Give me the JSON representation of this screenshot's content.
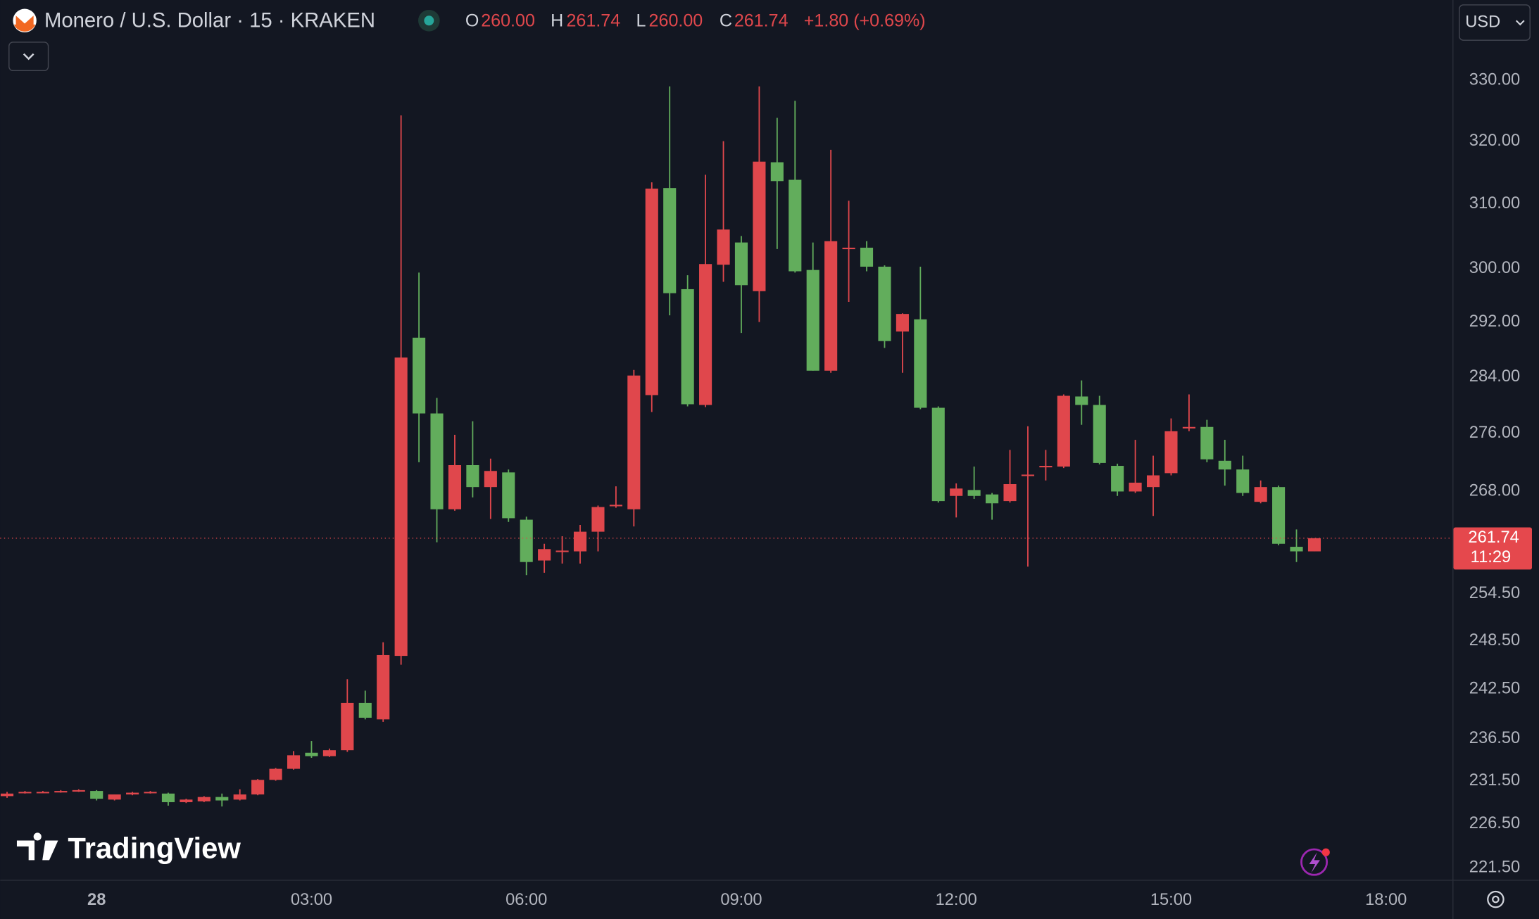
{
  "header": {
    "symbol": "Monero / U.S. Dollar · 15 · KRAKEN",
    "open_label": "O",
    "open": "260.00",
    "high_label": "H",
    "high": "261.74",
    "low_label": "L",
    "low": "260.00",
    "close_label": "C",
    "close": "261.74",
    "change": "+1.80 (+0.69%)",
    "currency": "USD"
  },
  "logo": "TradingView",
  "chart_data": {
    "type": "candlestick",
    "log_scale": true,
    "up_color": "#e0474c",
    "down_color": "#62ad5c",
    "ylim": [
      220.18,
      343.7
    ],
    "yticks": [
      {
        "value": 330,
        "label": "330.00"
      },
      {
        "value": 320,
        "label": "320.00"
      },
      {
        "value": 310,
        "label": "310.00"
      },
      {
        "value": 300,
        "label": "300.00"
      },
      {
        "value": 292,
        "label": "292.00"
      },
      {
        "value": 284,
        "label": "284.00"
      },
      {
        "value": 276,
        "label": "276.00"
      },
      {
        "value": 268,
        "label": "268.00"
      },
      {
        "value": 254.5,
        "label": "254.50"
      },
      {
        "value": 248.5,
        "label": "248.50"
      },
      {
        "value": 242.5,
        "label": "242.50"
      },
      {
        "value": 236.5,
        "label": "236.50"
      },
      {
        "value": 231.5,
        "label": "231.50"
      },
      {
        "value": 226.5,
        "label": "226.50"
      },
      {
        "value": 221.5,
        "label": "221.50"
      }
    ],
    "xlim": [
      -0.384,
      80.71
    ],
    "xticks": [
      {
        "value": 5,
        "label": "28"
      },
      {
        "value": 17,
        "label": "03:00"
      },
      {
        "value": 29,
        "label": "06:00"
      },
      {
        "value": 41,
        "label": "09:00"
      },
      {
        "value": 53,
        "label": "12:00"
      },
      {
        "value": 65,
        "label": "15:00"
      },
      {
        "value": 77,
        "label": "18:00"
      }
    ],
    "price_label": {
      "value": 261.74,
      "label": "261.74",
      "countdown": "11:29"
    },
    "open": [
      229.7,
      230.1,
      230.2,
      230.2,
      230.3,
      230.3,
      229.3,
      229.9,
      230.1,
      230.0,
      229.0,
      229.1,
      229.6,
      229.3,
      229.9,
      231.6,
      232.9,
      234.8,
      234.4,
      235.1,
      240.8,
      238.8,
      246.6,
      289.7,
      278.8,
      265.6,
      271.6,
      268.6,
      270.6,
      264.2,
      258.8,
      260.0,
      260.0,
      262.6,
      266.0,
      265.6,
      281.4,
      312.5,
      296.9,
      280.0,
      300.6,
      304.0,
      296.6,
      316.6,
      313.8,
      299.8,
      284.9,
      303.0,
      303.2,
      300.3,
      290.6,
      292.4,
      279.6,
      267.4,
      268.2,
      267.6,
      266.7,
      270.2,
      271.3,
      271.4,
      281.2,
      280.0,
      271.5,
      268.0,
      268.6,
      270.5,
      276.7,
      276.9,
      272.2,
      271.0,
      266.6,
      268.6,
      260.6,
      260.0
    ],
    "high": [
      230.2,
      230.3,
      230.3,
      230.4,
      230.5,
      230.4,
      229.9,
      230.2,
      230.3,
      230.1,
      229.4,
      229.7,
      230.0,
      230.5,
      231.7,
      233.0,
      235.0,
      236.2,
      235.3,
      243.7,
      242.3,
      248.3,
      324.2,
      299.4,
      281.0,
      275.8,
      277.7,
      272.5,
      271.0,
      264.6,
      261.0,
      262.0,
      263.5,
      266.1,
      268.7,
      285.0,
      313.4,
      329.0,
      299.0,
      314.6,
      320.0,
      305.0,
      329.0,
      323.8,
      326.6,
      304.0,
      318.6,
      310.5,
      304.2,
      300.5,
      293.3,
      300.3,
      279.8,
      269.1,
      271.4,
      267.8,
      273.7,
      277.0,
      273.7,
      281.5,
      283.5,
      281.3,
      271.8,
      275.1,
      272.9,
      278.1,
      281.5,
      277.9,
      275.1,
      272.9,
      269.5,
      268.8,
      262.9,
      261.74
    ],
    "low": [
      229.5,
      230.0,
      230.1,
      230.1,
      230.2,
      229.2,
      229.2,
      229.8,
      230.0,
      228.6,
      228.9,
      229.0,
      228.5,
      229.2,
      229.8,
      231.5,
      232.8,
      234.2,
      234.3,
      234.9,
      238.8,
      238.5,
      245.5,
      272.0,
      261.2,
      265.4,
      267.2,
      264.3,
      263.9,
      256.9,
      257.2,
      258.4,
      258.4,
      260.0,
      265.8,
      263.3,
      279.0,
      293.0,
      279.8,
      279.7,
      298.0,
      290.4,
      292.0,
      303.0,
      299.4,
      284.9,
      284.6,
      295.0,
      299.6,
      288.2,
      284.6,
      279.4,
      266.5,
      264.5,
      267.0,
      264.2,
      266.5,
      258.0,
      269.5,
      271.2,
      277.2,
      271.7,
      267.4,
      267.8,
      264.7,
      270.2,
      276.3,
      272.0,
      268.8,
      267.4,
      266.4,
      260.8,
      258.6,
      260.0
    ],
    "close": [
      230.0,
      230.2,
      230.2,
      230.3,
      230.4,
      229.4,
      229.9,
      230.1,
      230.2,
      229.0,
      229.3,
      229.6,
      229.2,
      229.9,
      231.6,
      232.9,
      234.5,
      234.4,
      235.1,
      240.8,
      239.0,
      246.7,
      286.8,
      278.8,
      265.6,
      271.6,
      268.6,
      270.8,
      264.4,
      258.6,
      260.3,
      260.1,
      262.6,
      265.9,
      266.2,
      284.2,
      312.4,
      296.3,
      280.1,
      300.7,
      306.0,
      297.5,
      316.7,
      313.6,
      299.6,
      284.9,
      304.2,
      303.2,
      300.3,
      289.2,
      293.2,
      279.6,
      266.7,
      268.4,
      267.4,
      266.4,
      269.0,
      270.3,
      271.5,
      281.3,
      280.0,
      271.9,
      268.0,
      269.2,
      270.2,
      276.3,
      276.9,
      272.4,
      271.0,
      267.8,
      268.6,
      261.0,
      260.0,
      261.74
    ]
  }
}
